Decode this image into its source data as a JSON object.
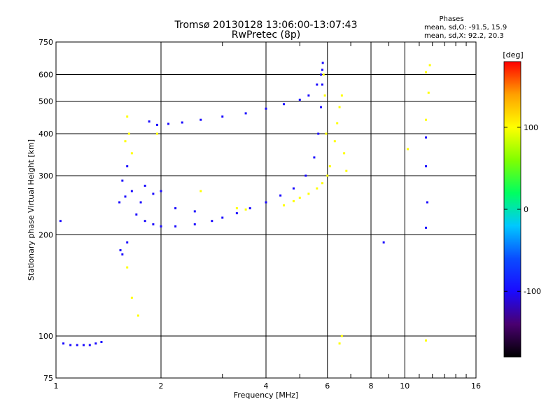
{
  "chart_data": {
    "type": "scatter",
    "title": "Tromsø 20130128 13:06:00-13:07:43",
    "subtitle": "RwPretec (8p)",
    "xlabel": "Frequency [MHz]",
    "ylabel": "Stationary phase Virtual Height [km]",
    "x_scale": "log",
    "y_scale": "log",
    "xlim": [
      1,
      16
    ],
    "ylim": [
      75,
      750
    ],
    "x_ticks": [
      1,
      2,
      4,
      6,
      8,
      10,
      16
    ],
    "y_ticks": [
      75,
      100,
      200,
      300,
      400,
      500,
      600,
      750
    ],
    "x_ticklabels": [
      "1",
      "2",
      "4",
      "6",
      "8",
      "10",
      "16"
    ],
    "y_ticklabels": [
      "75",
      "100",
      "200",
      "300",
      "400",
      "500",
      "600",
      "750"
    ],
    "grid": true,
    "stats": {
      "heading": "Phases",
      "line_o": "mean, sd,O: -91.5, 15.9",
      "line_x": "mean, sd,X: 92.2, 20.3"
    },
    "colorbar": {
      "label": "[deg]",
      "range": [
        -180,
        180
      ],
      "ticks": [
        100,
        0,
        -100
      ],
      "tick_labels": [
        "100",
        "0",
        "-100"
      ],
      "stops": [
        "#000000",
        "#4a0070",
        "#1a0aff",
        "#0a4cff",
        "#00c8ff",
        "#00ff60",
        "#80ff00",
        "#ffff00",
        "#ffa000",
        "#ff0000"
      ]
    },
    "series": [
      {
        "trace": "O-mode",
        "phase_deg": -110,
        "points": [
          [
            1.05,
            95
          ],
          [
            1.1,
            94
          ],
          [
            1.15,
            94
          ],
          [
            1.2,
            94
          ],
          [
            1.25,
            94
          ],
          [
            1.3,
            95
          ],
          [
            1.35,
            96
          ],
          [
            1.03,
            220
          ],
          [
            1.52,
            250
          ],
          [
            1.55,
            290
          ],
          [
            1.6,
            320
          ],
          [
            1.65,
            270
          ],
          [
            1.58,
            260
          ],
          [
            1.53,
            180
          ],
          [
            1.6,
            190
          ],
          [
            1.55,
            175
          ],
          [
            1.7,
            230
          ],
          [
            1.8,
            220
          ],
          [
            1.9,
            215
          ],
          [
            2.0,
            212
          ],
          [
            2.2,
            212
          ],
          [
            2.5,
            215
          ],
          [
            2.8,
            220
          ],
          [
            3.0,
            225
          ],
          [
            3.3,
            232
          ],
          [
            3.6,
            240
          ],
          [
            4.0,
            250
          ],
          [
            4.4,
            262
          ],
          [
            4.8,
            275
          ],
          [
            5.2,
            300
          ],
          [
            5.5,
            340
          ],
          [
            5.65,
            400
          ],
          [
            5.75,
            480
          ],
          [
            5.8,
            560
          ],
          [
            5.82,
            650
          ],
          [
            5.8,
            620
          ],
          [
            5.75,
            600
          ],
          [
            5.6,
            560
          ],
          [
            5.3,
            520
          ],
          [
            5.0,
            505
          ],
          [
            4.5,
            490
          ],
          [
            4.0,
            475
          ],
          [
            3.5,
            460
          ],
          [
            3.0,
            450
          ],
          [
            2.6,
            440
          ],
          [
            2.3,
            432
          ],
          [
            2.1,
            428
          ],
          [
            1.95,
            425
          ],
          [
            1.85,
            435
          ],
          [
            1.75,
            250
          ],
          [
            1.9,
            265
          ],
          [
            2.2,
            240
          ],
          [
            2.5,
            235
          ],
          [
            2.0,
            270
          ],
          [
            1.8,
            280
          ],
          [
            8.7,
            190
          ],
          [
            11.5,
            390
          ],
          [
            11.5,
            320
          ],
          [
            11.6,
            250
          ],
          [
            11.5,
            210
          ]
        ]
      },
      {
        "trace": "X-mode",
        "phase_deg": 100,
        "points": [
          [
            1.6,
            450
          ],
          [
            1.62,
            400
          ],
          [
            1.58,
            380
          ],
          [
            1.65,
            350
          ],
          [
            1.6,
            160
          ],
          [
            1.65,
            130
          ],
          [
            1.72,
            115
          ],
          [
            1.95,
            400
          ],
          [
            2.6,
            270
          ],
          [
            3.3,
            240
          ],
          [
            3.5,
            238
          ],
          [
            4.5,
            245
          ],
          [
            4.8,
            252
          ],
          [
            5.0,
            258
          ],
          [
            5.3,
            265
          ],
          [
            5.6,
            275
          ],
          [
            5.8,
            285
          ],
          [
            6.0,
            300
          ],
          [
            6.1,
            320
          ],
          [
            6.3,
            380
          ],
          [
            6.4,
            430
          ],
          [
            6.6,
            520
          ],
          [
            6.5,
            480
          ],
          [
            6.7,
            350
          ],
          [
            6.8,
            310
          ],
          [
            6.5,
            95
          ],
          [
            6.6,
            100
          ],
          [
            5.85,
            600
          ],
          [
            5.9,
            520
          ],
          [
            5.95,
            400
          ],
          [
            10.2,
            360
          ],
          [
            11.5,
            440
          ],
          [
            11.5,
            610
          ],
          [
            11.5,
            97
          ],
          [
            11.8,
            640
          ],
          [
            11.7,
            530
          ]
        ]
      }
    ]
  }
}
